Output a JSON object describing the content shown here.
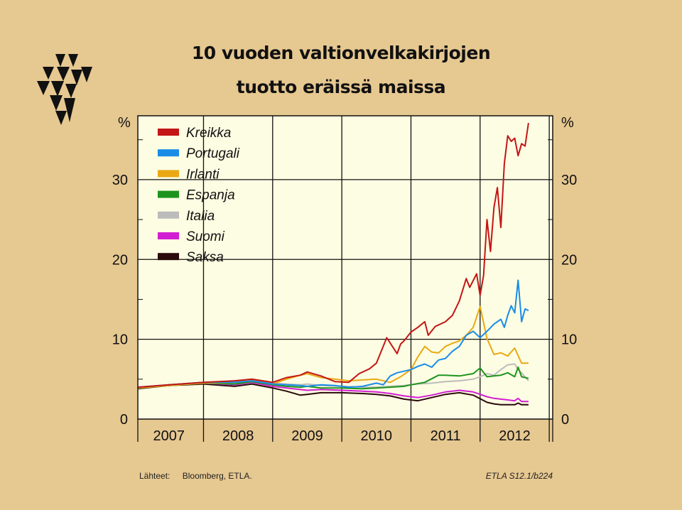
{
  "title": {
    "line1": "10 vuoden valtionvelkakirjojen",
    "line2": "tuotto eräissä maissa"
  },
  "footer": {
    "source_label": "Lähteet:",
    "source_text": "Bloomberg, ETLA.",
    "code": "ETLA S12.1/b224"
  },
  "colors": {
    "background": "#e6c891",
    "plot_background": "#fdfde3",
    "Kreikka": "#c41616",
    "Portugali": "#1a8ce8",
    "Irlanti": "#eaa812",
    "Espanja": "#1e941e",
    "Italia": "#bcbcbc",
    "Suomi": "#d21ed2",
    "Saksa": "#2a0a0a"
  },
  "chart_data": {
    "type": "line",
    "title": "10 vuoden valtionvelkakirjojen tuotto eräissä maissa",
    "ylabel_left": "%",
    "ylabel_right": "%",
    "ylim": [
      0,
      38
    ],
    "yticks": [
      0,
      10,
      20,
      30
    ],
    "xlim": [
      2006.55,
      2012.55
    ],
    "xtick_labels": [
      "2007",
      "2008",
      "2009",
      "2010",
      "2011",
      "2012"
    ],
    "grid": true,
    "legend_position": "top-left",
    "series": [
      {
        "name": "Kreikka",
        "x": [
          2006.55,
          2007.0,
          2007.5,
          2007.95,
          2008.2,
          2008.5,
          2008.7,
          2008.9,
          2009.0,
          2009.2,
          2009.4,
          2009.6,
          2009.75,
          2009.9,
          2010.0,
          2010.15,
          2010.3,
          2010.35,
          2010.4,
          2010.5,
          2010.6,
          2010.7,
          2010.75,
          2010.85,
          2011.0,
          2011.1,
          2011.2,
          2011.3,
          2011.35,
          2011.45,
          2011.5,
          2011.55,
          2011.6,
          2011.65,
          2011.7,
          2011.75,
          2011.8,
          2011.85,
          2011.9,
          2011.95,
          2012.0,
          2012.05,
          2012.1,
          2012.15,
          2012.2
        ],
        "values": [
          4.0,
          4.3,
          4.6,
          4.8,
          5.0,
          4.6,
          5.2,
          5.5,
          5.9,
          5.4,
          4.7,
          4.6,
          5.7,
          6.3,
          7.0,
          10.2,
          8.2,
          9.4,
          9.8,
          10.9,
          11.5,
          12.2,
          10.5,
          11.6,
          12.2,
          13.0,
          14.8,
          17.6,
          16.5,
          18.2,
          15.5,
          18.0,
          25.0,
          21.0,
          26.5,
          29.0,
          24.0,
          32.0,
          35.5,
          34.8,
          35.2,
          33.0,
          34.5,
          34.2,
          37.1
        ]
      },
      {
        "name": "Portugali",
        "x": [
          2006.55,
          2007.0,
          2007.5,
          2007.95,
          2008.2,
          2008.5,
          2008.7,
          2008.9,
          2009.0,
          2009.2,
          2009.4,
          2009.6,
          2009.8,
          2010.0,
          2010.1,
          2010.2,
          2010.3,
          2010.5,
          2010.6,
          2010.7,
          2010.8,
          2010.9,
          2011.0,
          2011.1,
          2011.2,
          2011.3,
          2011.4,
          2011.5,
          2011.6,
          2011.7,
          2011.8,
          2011.85,
          2011.9,
          2011.95,
          2012.0,
          2012.05,
          2012.1,
          2012.15,
          2012.2
        ],
        "values": [
          4.0,
          4.3,
          4.6,
          4.6,
          4.8,
          4.4,
          4.3,
          4.2,
          4.1,
          4.3,
          4.2,
          4.0,
          4.1,
          4.5,
          4.3,
          5.4,
          5.8,
          6.2,
          6.6,
          6.9,
          6.5,
          7.4,
          7.6,
          8.5,
          9.1,
          10.5,
          11.0,
          10.2,
          11.0,
          11.9,
          12.5,
          11.5,
          13.0,
          14.2,
          13.3,
          17.4,
          12.2,
          13.8,
          13.6
        ]
      },
      {
        "name": "Irlanti",
        "x": [
          2006.55,
          2007.0,
          2007.5,
          2007.95,
          2008.2,
          2008.5,
          2008.7,
          2008.9,
          2009.0,
          2009.2,
          2009.4,
          2009.6,
          2009.8,
          2010.0,
          2010.2,
          2010.35,
          2010.5,
          2010.6,
          2010.7,
          2010.8,
          2010.9,
          2011.0,
          2011.1,
          2011.2,
          2011.3,
          2011.4,
          2011.5,
          2011.6,
          2011.7,
          2011.8,
          2011.9,
          2012.0,
          2012.1,
          2012.2
        ],
        "values": [
          3.9,
          4.2,
          4.5,
          4.6,
          4.9,
          4.4,
          5.0,
          5.5,
          5.7,
          5.2,
          5.0,
          4.8,
          4.9,
          5.0,
          4.6,
          5.3,
          6.2,
          7.8,
          9.1,
          8.4,
          8.3,
          9.1,
          9.5,
          9.8,
          10.5,
          11.5,
          14.1,
          10.1,
          8.1,
          8.3,
          7.9,
          8.9,
          7.0,
          7.0
        ]
      },
      {
        "name": "Espanja",
        "x": [
          2006.55,
          2007.0,
          2007.5,
          2007.95,
          2008.2,
          2008.5,
          2008.7,
          2008.9,
          2009.0,
          2009.2,
          2009.5,
          2009.8,
          2010.0,
          2010.2,
          2010.4,
          2010.5,
          2010.7,
          2010.9,
          2011.0,
          2011.2,
          2011.4,
          2011.5,
          2011.6,
          2011.7,
          2011.8,
          2011.9,
          2012.0,
          2012.05,
          2012.1,
          2012.2
        ],
        "values": [
          3.9,
          4.2,
          4.5,
          4.4,
          4.7,
          4.3,
          4.1,
          4.0,
          4.1,
          3.9,
          3.9,
          3.8,
          3.9,
          4.0,
          4.1,
          4.3,
          4.6,
          5.5,
          5.5,
          5.4,
          5.7,
          6.4,
          5.3,
          5.4,
          5.5,
          5.8,
          5.3,
          6.5,
          5.3,
          5.1
        ]
      },
      {
        "name": "Italia",
        "x": [
          2006.55,
          2007.0,
          2007.5,
          2007.95,
          2008.2,
          2008.5,
          2008.7,
          2008.9,
          2009.0,
          2009.2,
          2009.5,
          2009.8,
          2010.0,
          2010.2,
          2010.4,
          2010.6,
          2010.8,
          2011.0,
          2011.2,
          2011.4,
          2011.5,
          2011.6,
          2011.7,
          2011.8,
          2011.9,
          2012.0,
          2012.05,
          2012.1,
          2012.2
        ],
        "values": [
          3.9,
          4.3,
          4.6,
          4.5,
          4.8,
          4.5,
          4.4,
          4.3,
          4.4,
          4.2,
          4.1,
          4.0,
          4.0,
          4.1,
          4.2,
          4.4,
          4.5,
          4.7,
          4.8,
          5.0,
          5.3,
          5.7,
          5.5,
          6.2,
          6.8,
          6.9,
          6.2,
          5.8,
          4.8
        ]
      },
      {
        "name": "Suomi",
        "x": [
          2006.55,
          2007.0,
          2007.5,
          2007.95,
          2008.2,
          2008.5,
          2008.7,
          2008.9,
          2009.0,
          2009.2,
          2009.5,
          2009.8,
          2010.0,
          2010.2,
          2010.4,
          2010.6,
          2010.8,
          2011.0,
          2011.2,
          2011.4,
          2011.6,
          2011.7,
          2011.8,
          2011.9,
          2012.0,
          2012.05,
          2012.1,
          2012.2
        ],
        "values": [
          3.9,
          4.3,
          4.5,
          4.3,
          4.6,
          4.1,
          3.9,
          3.7,
          3.6,
          3.7,
          3.6,
          3.5,
          3.4,
          3.2,
          2.9,
          2.7,
          3.0,
          3.4,
          3.6,
          3.4,
          2.8,
          2.6,
          2.5,
          2.4,
          2.3,
          2.6,
          2.2,
          2.2
        ]
      },
      {
        "name": "Saksa",
        "x": [
          2006.55,
          2007.0,
          2007.5,
          2007.95,
          2008.2,
          2008.5,
          2008.7,
          2008.9,
          2009.0,
          2009.2,
          2009.5,
          2009.8,
          2010.0,
          2010.2,
          2010.4,
          2010.6,
          2010.8,
          2011.0,
          2011.2,
          2011.4,
          2011.6,
          2011.7,
          2011.8,
          2011.9,
          2012.0,
          2012.05,
          2012.1,
          2012.2
        ],
        "values": [
          3.8,
          4.2,
          4.4,
          4.1,
          4.4,
          3.9,
          3.5,
          3.0,
          3.1,
          3.3,
          3.3,
          3.2,
          3.1,
          2.9,
          2.5,
          2.3,
          2.7,
          3.1,
          3.3,
          3.0,
          2.1,
          1.9,
          1.8,
          1.8,
          1.8,
          2.0,
          1.8,
          1.8
        ]
      }
    ]
  }
}
